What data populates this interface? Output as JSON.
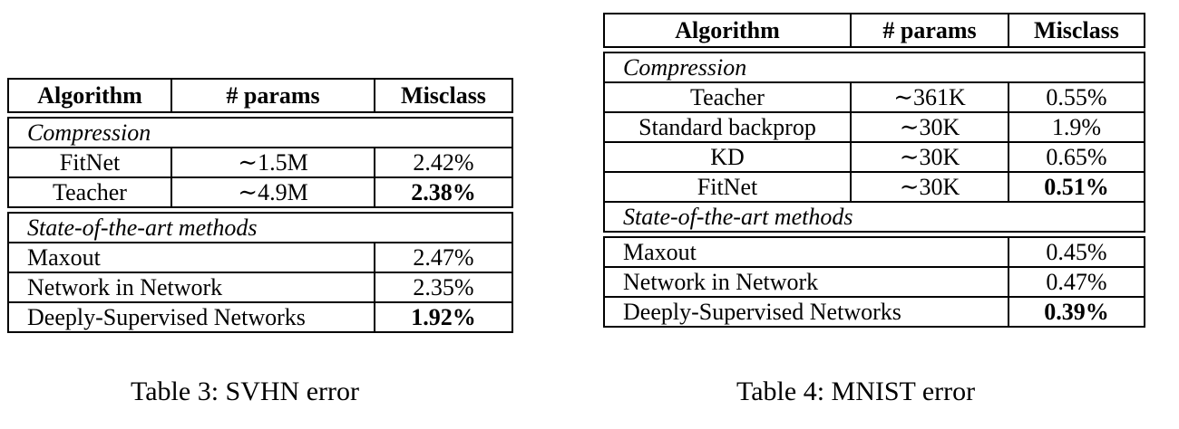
{
  "table3": {
    "headers": [
      "Algorithm",
      "# params",
      "Misclass"
    ],
    "sections": [
      {
        "title": "Compression",
        "rows": [
          {
            "algorithm": "FitNet",
            "params": "∼1.5M",
            "misclass": "2.42%"
          },
          {
            "algorithm": "Teacher",
            "params": "∼4.9M",
            "misclass": "2.38%"
          }
        ]
      },
      {
        "title": "State-of-the-art methods",
        "rows": [
          {
            "algorithm": "Maxout",
            "misclass": "2.47%"
          },
          {
            "algorithm": "Network in Network",
            "misclass": "2.35%"
          },
          {
            "algorithm": "Deeply-Supervised Networks",
            "misclass": "1.92%"
          }
        ]
      }
    ],
    "caption": "Table 3: SVHN error"
  },
  "table4": {
    "headers": [
      "Algorithm",
      "# params",
      "Misclass"
    ],
    "sections": [
      {
        "title": "Compression",
        "rows": [
          {
            "algorithm": "Teacher",
            "params": "∼361K",
            "misclass": "0.55%"
          },
          {
            "algorithm": "Standard backprop",
            "params": "∼30K",
            "misclass": "1.9%"
          },
          {
            "algorithm": "KD",
            "params": "∼30K",
            "misclass": "0.65%"
          },
          {
            "algorithm": "FitNet",
            "params": "∼30K",
            "misclass": "0.51%"
          }
        ]
      },
      {
        "title": "State-of-the-art methods",
        "rows": [
          {
            "algorithm": "Maxout",
            "misclass": "0.45%"
          },
          {
            "algorithm": "Network in Network",
            "misclass": "0.47%"
          },
          {
            "algorithm": "Deeply-Supervised Networks",
            "misclass": "0.39%"
          }
        ]
      }
    ],
    "caption": "Table 4: MNIST error"
  }
}
